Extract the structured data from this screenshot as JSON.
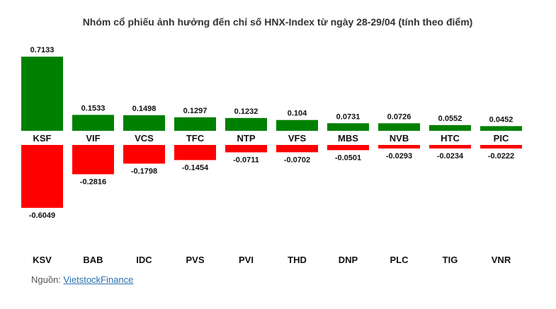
{
  "chart_data": {
    "type": "bar",
    "title": "Nhóm cổ phiếu ảnh hưởng đến chỉ số HNX-Index từ ngày 28-29/04 (tính theo điểm)",
    "positive": {
      "categories": [
        "KSF",
        "VIF",
        "VCS",
        "TFC",
        "NTP",
        "VFS",
        "MBS",
        "NVB",
        "HTC",
        "PIC"
      ],
      "values": [
        0.7133,
        0.1533,
        0.1498,
        0.1297,
        0.1232,
        0.104,
        0.0731,
        0.0726,
        0.0552,
        0.0452
      ],
      "labels": [
        "0.7133",
        "0.1533",
        "0.1498",
        "0.1297",
        "0.1232",
        "0.104",
        "0.0731",
        "0.0726",
        "0.0552",
        "0.0452"
      ],
      "color": "#008000"
    },
    "negative": {
      "categories": [
        "KSV",
        "BAB",
        "IDC",
        "PVS",
        "PVI",
        "THD",
        "DNP",
        "PLC",
        "TIG",
        "VNR"
      ],
      "values": [
        -0.6049,
        -0.2816,
        -0.1798,
        -0.1454,
        -0.0711,
        -0.0702,
        -0.0501,
        -0.0293,
        -0.0234,
        -0.0222
      ],
      "labels": [
        "-0.6049",
        "-0.2816",
        "-0.1798",
        "-0.1454",
        "-0.0711",
        "-0.0702",
        "-0.0501",
        "-0.0293",
        "-0.0234",
        "-0.0222"
      ],
      "color": "#ff0000"
    }
  },
  "source": {
    "prefix": "Nguồn:",
    "link": "VietstockFinance"
  }
}
